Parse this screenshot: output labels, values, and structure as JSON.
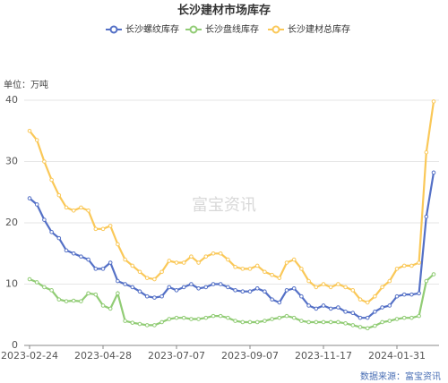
{
  "chart_data": {
    "type": "line",
    "title": "长沙建材市场库存",
    "y_unit_label": "单位：万吨",
    "watermark": "富宝资讯",
    "source": "数据来源：富宝资讯",
    "categories": [
      "2023-02-24",
      null,
      null,
      null,
      null,
      null,
      null,
      null,
      null,
      null,
      "2023-04-28",
      null,
      null,
      null,
      null,
      null,
      null,
      null,
      null,
      null,
      "2023-07-07",
      null,
      null,
      null,
      null,
      null,
      null,
      null,
      null,
      null,
      "2023-09-07",
      null,
      null,
      null,
      null,
      null,
      null,
      null,
      null,
      null,
      "2023-11-17",
      null,
      null,
      null,
      null,
      null,
      null,
      null,
      null,
      null,
      "2024-01-31",
      null,
      null,
      null,
      null,
      null
    ],
    "series": [
      {
        "name": "长沙螺纹库存",
        "color": "#5470c6",
        "values": [
          24,
          23,
          20.5,
          18.5,
          17.5,
          15.5,
          15,
          14.5,
          14,
          12.5,
          12.5,
          13.5,
          10.5,
          10,
          9.5,
          8.8,
          8,
          7.8,
          8,
          9.5,
          9,
          9.5,
          10,
          9.3,
          9.5,
          10,
          10,
          9.5,
          9,
          8.8,
          8.8,
          9.3,
          8.8,
          7.5,
          7,
          9,
          9.3,
          8,
          6.5,
          6,
          6.5,
          6,
          6.2,
          5.5,
          5.3,
          4.5,
          4.5,
          5.5,
          6.2,
          6.5,
          8,
          8.3,
          8.3,
          8.5,
          21,
          28.2
        ]
      },
      {
        "name": "长沙盘线库存",
        "color": "#91cc75",
        "values": [
          10.8,
          10.3,
          9.5,
          9,
          7.5,
          7.2,
          7.3,
          7.2,
          8.5,
          8.3,
          6.5,
          6,
          8.5,
          4,
          3.7,
          3.5,
          3.3,
          3.3,
          3.8,
          4.3,
          4.5,
          4.5,
          4.3,
          4.3,
          4.5,
          4.8,
          4.8,
          4.5,
          4,
          3.8,
          3.8,
          3.8,
          4,
          4.3,
          4.5,
          4.8,
          4.5,
          4,
          3.8,
          3.8,
          3.8,
          3.8,
          3.8,
          3.6,
          3.3,
          3,
          2.8,
          3.2,
          3.8,
          4,
          4.3,
          4.5,
          4.5,
          4.8,
          10.5,
          11.6
        ]
      },
      {
        "name": "长沙建材总库存",
        "color": "#fac858",
        "values": [
          35,
          33.5,
          30,
          27,
          24.5,
          22.5,
          22,
          22.5,
          22,
          19,
          19,
          19.5,
          16.5,
          14,
          13,
          12,
          11,
          10.8,
          12,
          13.8,
          13.5,
          13.5,
          14.5,
          13.5,
          14.5,
          15,
          15,
          14,
          12.8,
          12.5,
          12.5,
          13,
          12,
          11.5,
          11,
          13.5,
          14,
          12.5,
          10.5,
          9.5,
          10,
          9.5,
          10,
          9.5,
          9,
          7.5,
          7,
          8,
          9.5,
          10.5,
          12.5,
          13,
          13,
          13.5,
          31.5,
          39.8
        ]
      }
    ],
    "ylim": [
      0,
      40
    ],
    "yticks": [
      0,
      10,
      20,
      30,
      40
    ],
    "grid": true
  }
}
